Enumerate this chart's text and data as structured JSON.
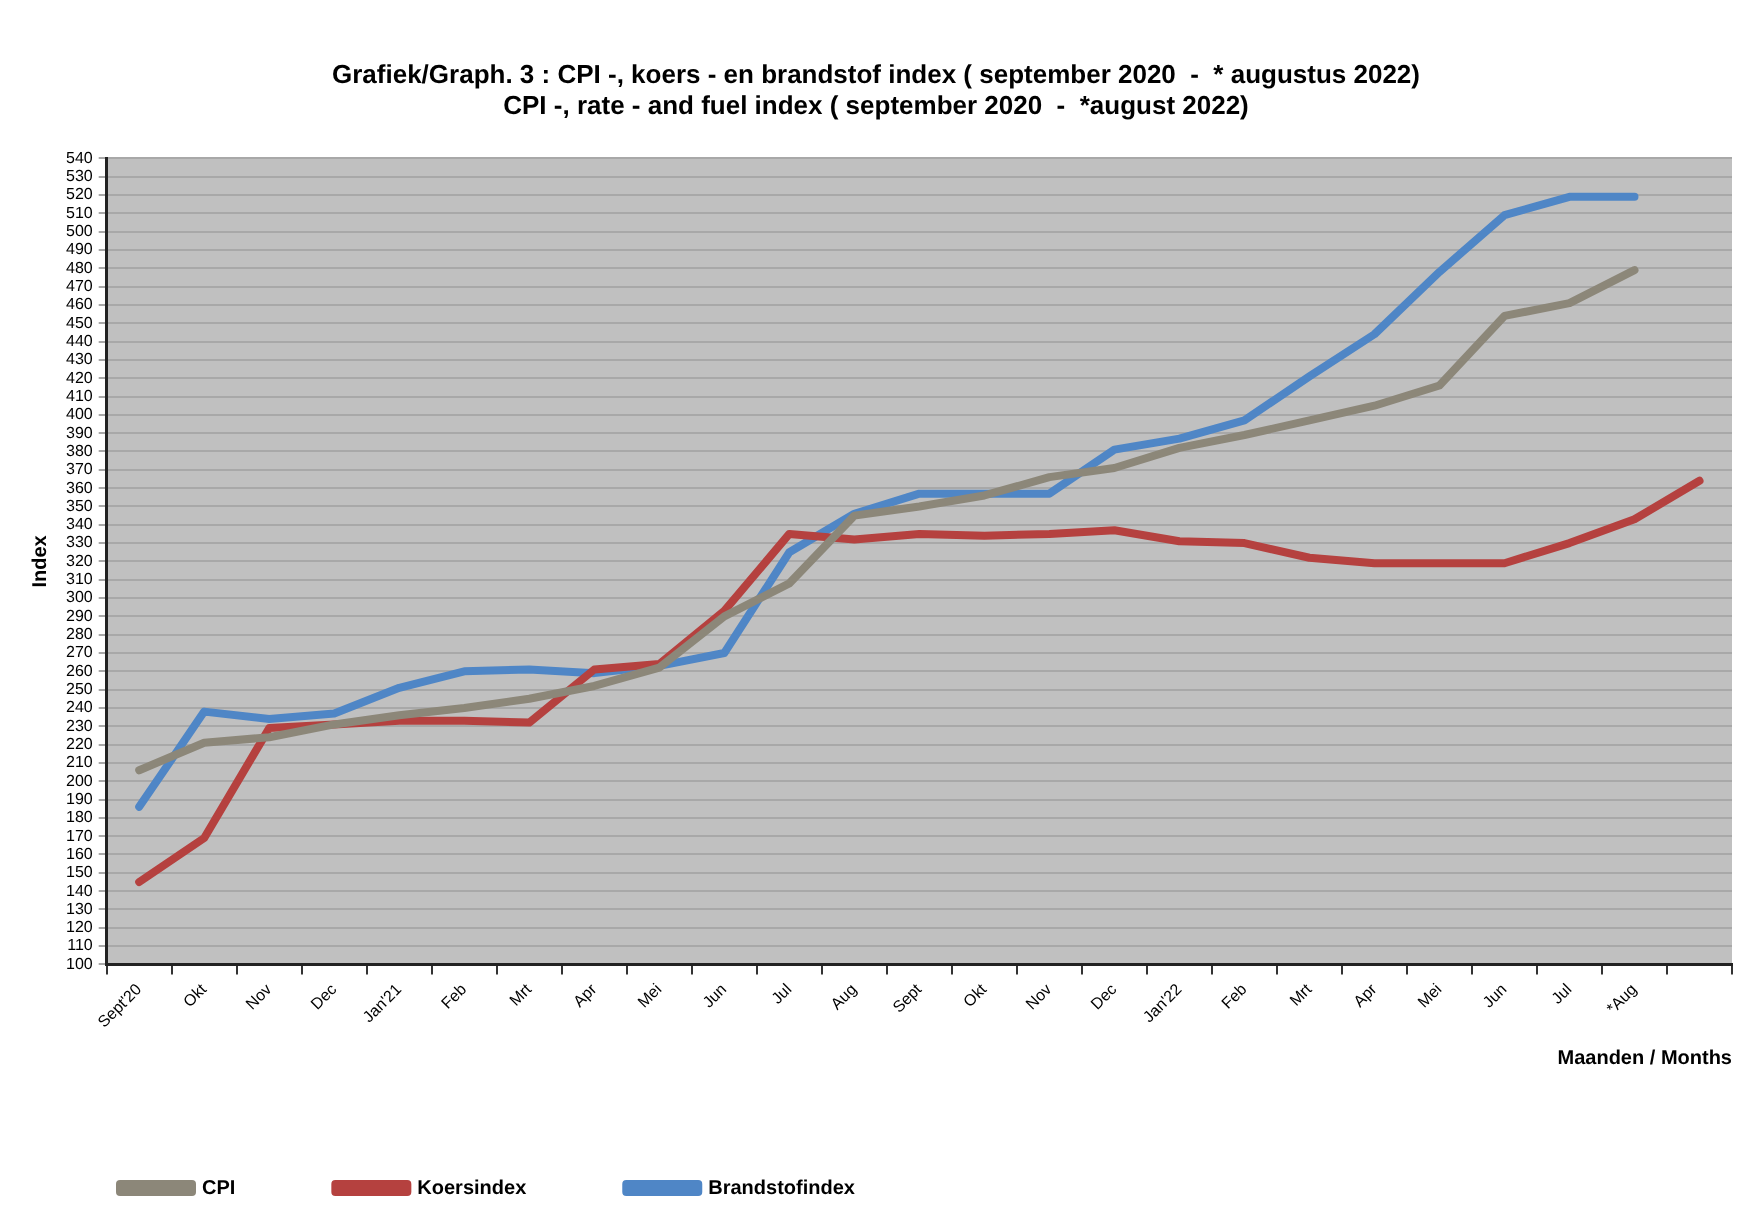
{
  "chart_data": {
    "type": "line",
    "title": "Grafiek/Graph. 3 : CPI -, koers - en brandstof index ( september 2020  -  * augustus 2022)",
    "subtitle": "CPI -, rate - and fuel index ( september 2020  -  *august 2022)",
    "xlabel": "Maanden / Months",
    "ylabel": "Index",
    "categories": [
      "Sept'20",
      "Okt",
      "Nov",
      "Dec",
      "Jan'21",
      "Feb",
      "Mrt",
      "Apr",
      "Mei",
      "Jun",
      "Jul",
      "Aug",
      "Sept",
      "Okt",
      "Nov",
      "Dec",
      "Jan'22",
      "Feb",
      "Mrt",
      "Apr",
      "Mei",
      "Jun",
      "Jul",
      "*Aug",
      null
    ],
    "series": [
      {
        "name": "CPI",
        "color": "#8c8779",
        "values": [
          206,
          221,
          224,
          231,
          236,
          240,
          245,
          252,
          262,
          290,
          308,
          345,
          350,
          356,
          366,
          371,
          382,
          389,
          397,
          405,
          416,
          454,
          461,
          479,
          null
        ]
      },
      {
        "name": "Koersindex",
        "color": "#b5413f",
        "values": [
          145,
          169,
          229,
          231,
          233,
          233,
          232,
          261,
          264,
          293,
          335,
          332,
          335,
          334,
          335,
          337,
          331,
          330,
          322,
          319,
          319,
          319,
          330,
          343,
          364
        ]
      },
      {
        "name": "Brandstofindex",
        "color": "#4f86c6",
        "values": [
          186,
          238,
          234,
          237,
          251,
          260,
          261,
          259,
          263,
          270,
          325,
          346,
          357,
          357,
          357,
          381,
          387,
          397,
          421,
          444,
          478,
          509,
          519,
          519,
          null
        ]
      }
    ],
    "ylim": [
      100,
      540
    ],
    "yticks": [
      100,
      110,
      120,
      130,
      140,
      150,
      160,
      170,
      180,
      190,
      200,
      210,
      220,
      230,
      240,
      250,
      260,
      270,
      280,
      290,
      300,
      310,
      320,
      330,
      340,
      350,
      360,
      370,
      380,
      390,
      400,
      410,
      420,
      430,
      440,
      450,
      460,
      470,
      480,
      490,
      500,
      510,
      520,
      530,
      540
    ],
    "grid": "y",
    "legend": "bottom",
    "marker": "none",
    "line_style": "solid"
  }
}
